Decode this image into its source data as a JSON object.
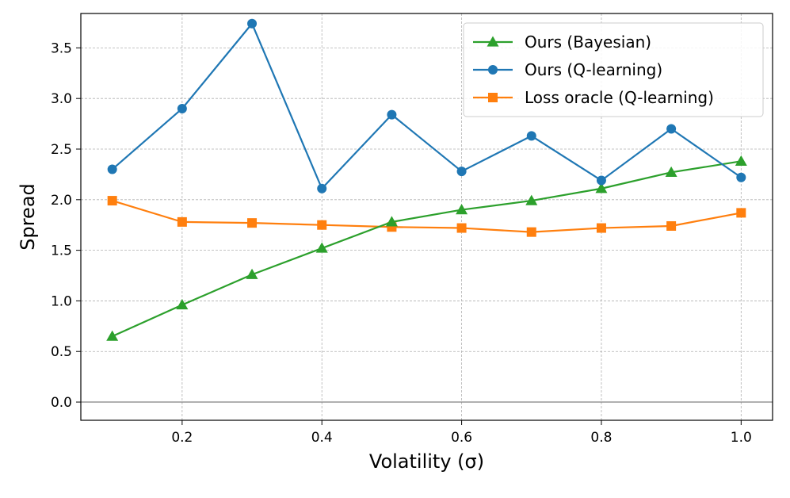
{
  "chart_data": {
    "type": "line",
    "title": "",
    "xlabel": "Volatility (σ)",
    "ylabel": "Spread",
    "x": [
      0.1,
      0.2,
      0.3,
      0.4,
      0.5,
      0.6,
      0.7,
      0.8,
      0.9,
      1.0
    ],
    "xlim": [
      0.055,
      1.045
    ],
    "ylim": [
      -0.18,
      3.84
    ],
    "x_ticks": [
      0.2,
      0.4,
      0.6,
      0.8,
      1.0
    ],
    "x_tick_labels": [
      "0.2",
      "0.4",
      "0.6",
      "0.8",
      "1.0"
    ],
    "y_ticks": [
      0.0,
      0.5,
      1.0,
      1.5,
      2.0,
      2.5,
      3.0,
      3.5
    ],
    "y_tick_labels": [
      "0.0",
      "0.5",
      "1.0",
      "1.5",
      "2.0",
      "2.5",
      "3.0",
      "3.5"
    ],
    "grid": true,
    "legend_position": "top-right",
    "series": [
      {
        "name": "Ours (Bayesian)",
        "color": "#2ca02c",
        "marker": "triangle",
        "values": [
          0.65,
          0.96,
          1.26,
          1.52,
          1.78,
          1.9,
          1.99,
          2.11,
          2.27,
          2.38
        ]
      },
      {
        "name": "Ours (Q-learning)",
        "color": "#1f77b4",
        "marker": "circle",
        "values": [
          2.3,
          2.9,
          3.74,
          2.11,
          2.84,
          2.28,
          2.63,
          2.19,
          2.7,
          2.22
        ]
      },
      {
        "name": "Loss oracle (Q-learning)",
        "color": "#ff7f0e",
        "marker": "square",
        "values": [
          1.99,
          1.78,
          1.77,
          1.75,
          1.73,
          1.72,
          1.68,
          1.72,
          1.74,
          1.87
        ]
      }
    ]
  }
}
